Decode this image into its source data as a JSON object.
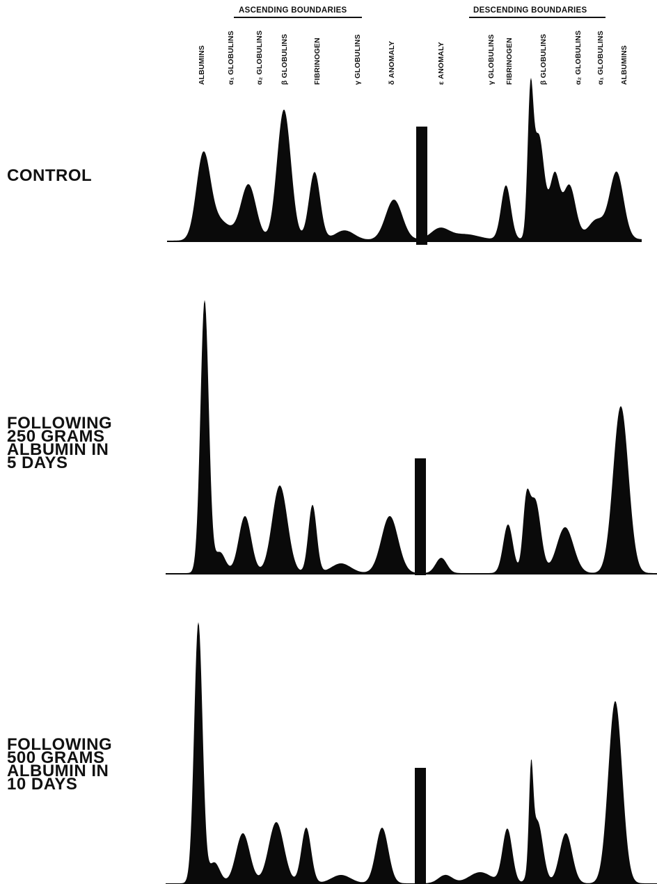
{
  "header": {
    "ascending_title": "ASCENDING BOUNDARIES",
    "descending_title": "DESCENDING BOUNDARIES",
    "ascending_labels": [
      "ALBUMINS",
      "α₁ GLOBULINS",
      "α₂ GLOBULINS",
      "β GLOBULINS",
      "FIBRINOGEN",
      "γ GLOBULINS",
      "δ ANOMALY"
    ],
    "descending_labels": [
      "ε ANOMALY",
      "γ GLOBULINS",
      "FIBRINOGEN",
      "β GLOBULINS",
      "α₂ GLOBULINS",
      "α₁ GLOBULINS",
      "ALBUMINS"
    ]
  },
  "rows": [
    {
      "label": "CONTROL"
    },
    {
      "label": "FOLLOWING\n250 GRAMS\nALBUMIN IN\n5 DAYS"
    },
    {
      "label": "FOLLOWING\n500 GRAMS\nALBUMIN IN\n10 DAYS"
    }
  ],
  "colors": {
    "ink": "#0a0a0a",
    "background": "#ffffff"
  }
}
